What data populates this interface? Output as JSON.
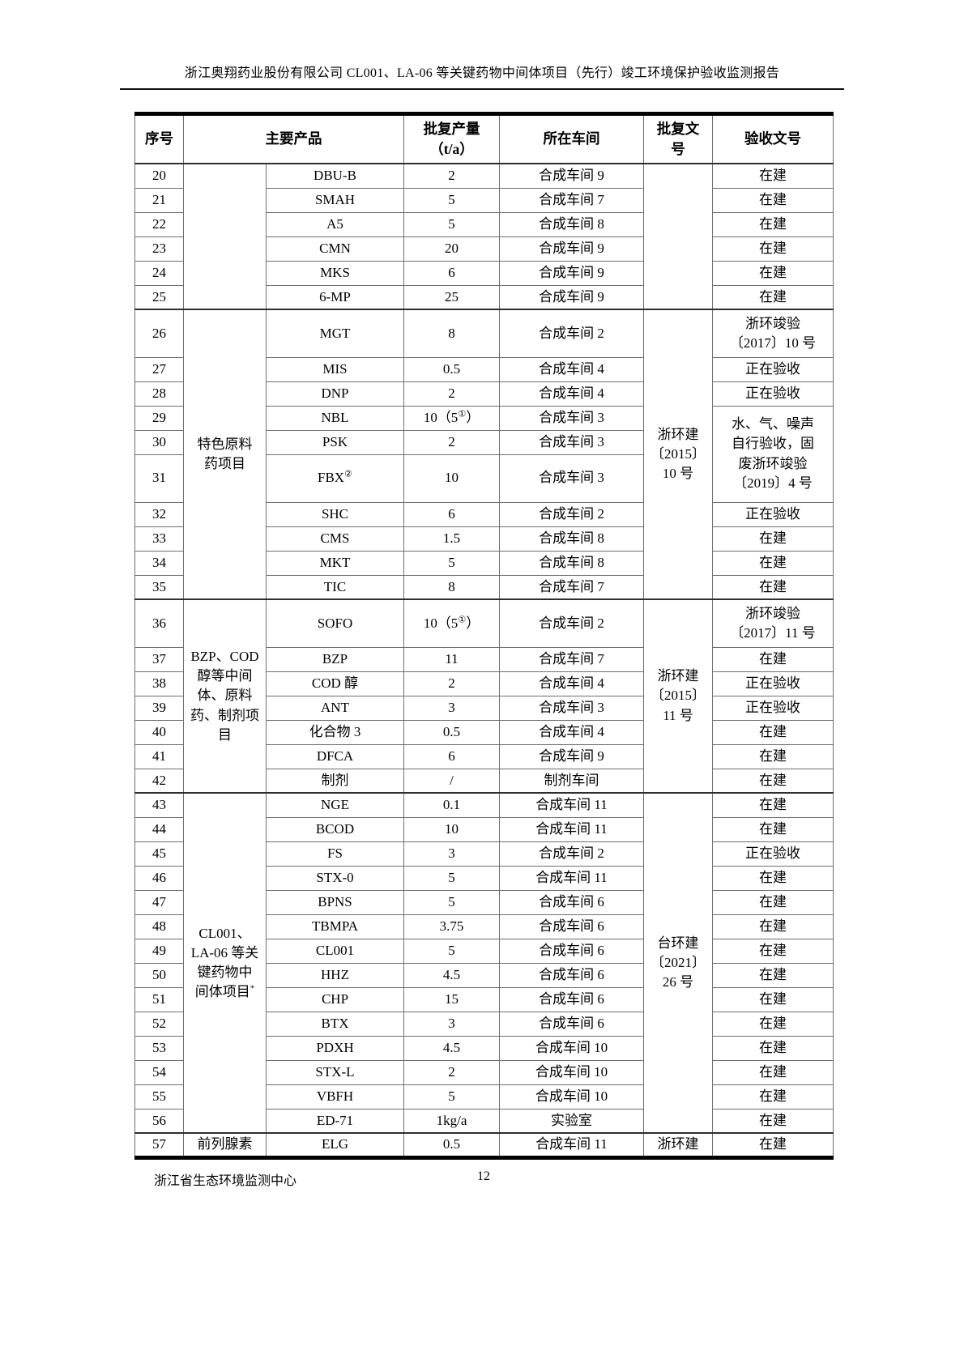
{
  "page_header": {
    "title": "浙江奥翔药业股份有限公司 CL001、LA-06 等关键药物中间体项目（先行）竣工环境保护验收监测报告"
  },
  "table": {
    "headers": [
      {
        "label": "序号"
      },
      {
        "label": "主要产品",
        "colspan": 2
      },
      {
        "label": "批复产量\n（t/a）"
      },
      {
        "label": "所在车间"
      },
      {
        "label": "批复文\n号"
      },
      {
        "label": "验收文号"
      }
    ],
    "rows": [
      {
        "no": "20",
        "category": {
          "text": "",
          "rowspan": 6
        },
        "product": "DBU-B",
        "qty": "2",
        "workshop": "合成车间 9",
        "approval": {
          "text": "",
          "rowspan": 6
        },
        "acceptance": "在建",
        "section_start": true
      },
      {
        "no": "21",
        "product": "SMAH",
        "qty": "5",
        "workshop": "合成车间 7",
        "acceptance": "在建"
      },
      {
        "no": "22",
        "product": "A5",
        "qty": "5",
        "workshop": "合成车间 8",
        "acceptance": "在建"
      },
      {
        "no": "23",
        "product": "CMN",
        "qty": "20",
        "workshop": "合成车间 9",
        "acceptance": "在建"
      },
      {
        "no": "24",
        "product": "MKS",
        "qty": "6",
        "workshop": "合成车间 9",
        "acceptance": "在建"
      },
      {
        "no": "25",
        "product": "6-MP",
        "qty": "25",
        "workshop": "合成车间 9",
        "acceptance": "在建"
      },
      {
        "no": "26",
        "category": {
          "text": "特色原料\n药项目",
          "rowspan": 10
        },
        "product": "MGT",
        "qty": "8",
        "workshop": "合成车间 2",
        "approval": {
          "text": "浙环建\n〔2015〕\n10 号",
          "rowspan": 10
        },
        "acceptance": "浙环竣验\n〔2017〕10 号",
        "h": 2,
        "section_start": true
      },
      {
        "no": "27",
        "product": "MIS",
        "qty": "0.5",
        "workshop": "合成车间 4",
        "acceptance": "正在验收"
      },
      {
        "no": "28",
        "product": "DNP",
        "qty": "2",
        "workshop": "合成车间 4",
        "acceptance": "正在验收"
      },
      {
        "no": "29",
        "product": "NBL",
        "qty": [
          "10（5",
          {
            "sup": "①"
          },
          "）"
        ],
        "workshop": "合成车间 3",
        "acceptance": {
          "text": "水、气、噪声\n自行验收，固\n废浙环竣验\n〔2019〕4 号",
          "rowspan": 3
        }
      },
      {
        "no": "30",
        "product": "PSK",
        "qty": "2",
        "workshop": "合成车间 3"
      },
      {
        "no": "31",
        "product": [
          "FBX",
          {
            "sup": "②"
          }
        ],
        "qty": "10",
        "workshop": "合成车间 3",
        "h": 2
      },
      {
        "no": "32",
        "product": "SHC",
        "qty": "6",
        "workshop": "合成车间 2",
        "acceptance": "正在验收"
      },
      {
        "no": "33",
        "product": "CMS",
        "qty": "1.5",
        "workshop": "合成车间 8",
        "acceptance": "在建"
      },
      {
        "no": "34",
        "product": "MKT",
        "qty": "5",
        "workshop": "合成车间 8",
        "acceptance": "在建"
      },
      {
        "no": "35",
        "product": "TIC",
        "qty": "8",
        "workshop": "合成车间 7",
        "acceptance": "在建"
      },
      {
        "no": "36",
        "category": {
          "text": "BZP、COD\n醇等中间\n体、原料\n药、制剂项\n目",
          "rowspan": 7
        },
        "product": "SOFO",
        "qty": [
          "10（5",
          {
            "sup": "①"
          },
          "）"
        ],
        "workshop": "合成车间 2",
        "approval": {
          "text": "浙环建\n〔2015〕\n11 号",
          "rowspan": 7
        },
        "acceptance": "浙环竣验\n〔2017〕11 号",
        "h": 2,
        "section_start": true
      },
      {
        "no": "37",
        "product": "BZP",
        "qty": "11",
        "workshop": "合成车间 7",
        "acceptance": "在建"
      },
      {
        "no": "38",
        "product": "COD 醇",
        "qty": "2",
        "workshop": "合成车间 4",
        "acceptance": "正在验收"
      },
      {
        "no": "39",
        "product": "ANT",
        "qty": "3",
        "workshop": "合成车间 3",
        "acceptance": "正在验收"
      },
      {
        "no": "40",
        "product": "化合物 3",
        "qty": "0.5",
        "workshop": "合成车间 4",
        "acceptance": "在建"
      },
      {
        "no": "41",
        "product": "DFCA",
        "qty": "6",
        "workshop": "合成车间 9",
        "acceptance": "在建"
      },
      {
        "no": "42",
        "product": "制剂",
        "qty": "/",
        "workshop": "制剂车间",
        "acceptance": "在建"
      },
      {
        "no": "43",
        "category": {
          "text": [
            "CL001、\nLA-06 等关\n键药物中\n间体项目",
            {
              "sup": "*"
            }
          ],
          "rowspan": 14
        },
        "product": "NGE",
        "qty": "0.1",
        "workshop": "合成车间 11",
        "approval": {
          "text": "台环建\n〔2021〕\n26 号",
          "rowspan": 14
        },
        "acceptance": "在建",
        "section_start": true
      },
      {
        "no": "44",
        "product": "BCOD",
        "qty": "10",
        "workshop": "合成车间 11",
        "acceptance": "在建"
      },
      {
        "no": "45",
        "product": "FS",
        "qty": "3",
        "workshop": "合成车间 2",
        "acceptance": "正在验收"
      },
      {
        "no": "46",
        "product": "STX-0",
        "qty": "5",
        "workshop": "合成车间 11",
        "acceptance": "在建"
      },
      {
        "no": "47",
        "product": "BPNS",
        "qty": "5",
        "workshop": "合成车间 6",
        "acceptance": "在建"
      },
      {
        "no": "48",
        "product": "TBMPA",
        "qty": "3.75",
        "workshop": "合成车间 6",
        "acceptance": "在建"
      },
      {
        "no": "49",
        "product": "CL001",
        "qty": "5",
        "workshop": "合成车间 6",
        "acceptance": "在建"
      },
      {
        "no": "50",
        "product": "HHZ",
        "qty": "4.5",
        "workshop": "合成车间 6",
        "acceptance": "在建"
      },
      {
        "no": "51",
        "product": "CHP",
        "qty": "15",
        "workshop": "合成车间 6",
        "acceptance": "在建"
      },
      {
        "no": "52",
        "product": "BTX",
        "qty": "3",
        "workshop": "合成车间 6",
        "acceptance": "在建"
      },
      {
        "no": "53",
        "product": "PDXH",
        "qty": "4.5",
        "workshop": "合成车间 10",
        "acceptance": "在建"
      },
      {
        "no": "54",
        "product": "STX-L",
        "qty": "2",
        "workshop": "合成车间 10",
        "acceptance": "在建"
      },
      {
        "no": "55",
        "product": "VBFH",
        "qty": "5",
        "workshop": "合成车间 10",
        "acceptance": "在建"
      },
      {
        "no": "56",
        "product": "ED-71",
        "qty": "1kg/a",
        "workshop": "实验室",
        "acceptance": "在建"
      },
      {
        "no": "57",
        "category": {
          "text": "前列腺素",
          "rowspan": 1
        },
        "product": "ELG",
        "qty": "0.5",
        "workshop": "合成车间 11",
        "approval": {
          "text": "浙环建",
          "rowspan": 1
        },
        "acceptance": "在建",
        "section_start": true
      }
    ]
  },
  "footer": {
    "org": "浙江省生态环境监测中心",
    "page": "12"
  }
}
